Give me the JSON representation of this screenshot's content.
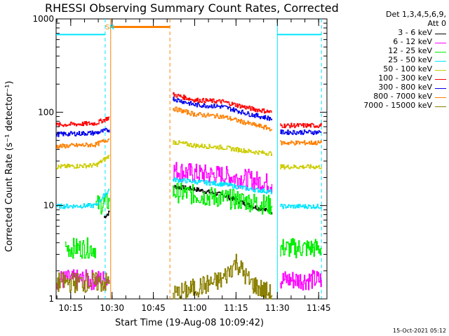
{
  "chart_data": {
    "type": "line",
    "title": "RHESSI Observing Summary Count Rates, Corrected",
    "xlabel": "Start Time (19-Aug-08 10:09:42)",
    "ylabel": "Corrected Count Rate (s⁻¹ detector⁻¹)",
    "y_scale": "log",
    "ylim": [
      1,
      1000
    ],
    "xlim_minutes": [
      "10:09:42",
      "11:48:00"
    ],
    "x_tick_labels": [
      "10:15",
      "10:30",
      "10:45",
      "11:00",
      "11:15",
      "11:30",
      "11:45"
    ],
    "y_tick_labels": [
      "1",
      "10",
      "100",
      "1000"
    ],
    "legend_header": [
      "Det 1,3,4,5,6,9,",
      "Att 0"
    ],
    "flags": [
      {
        "label": "S",
        "time": "10:28:30",
        "color": "#ff8c00"
      },
      {
        "label": "N",
        "time": "10:30:00",
        "color": "#00e5ff"
      }
    ],
    "series": [
      {
        "name": "3 - 6 keV",
        "color": "#000000",
        "segments": [
          {
            "t": [
              "10:27",
              "10:29"
            ],
            "v": [
              7.5,
              8.5
            ]
          },
          {
            "t": [
              "10:52",
              "11:00",
              "11:10",
              "11:20",
              "11:28"
            ],
            "v": [
              16,
              15,
              13,
              10,
              8.5
            ]
          }
        ]
      },
      {
        "name": "6 - 12 keV",
        "color": "#ff00ff",
        "segments": [
          {
            "t": [
              "10:09:42",
              "10:29"
            ],
            "v": [
              1.6,
              1.6
            ]
          },
          {
            "t": [
              "10:52",
              "11:00",
              "11:10",
              "11:20",
              "11:28"
            ],
            "v": [
              24,
              22,
              21,
              19,
              17
            ]
          },
          {
            "t": [
              "11:31",
              "11:46"
            ],
            "v": [
              1.6,
              1.6
            ]
          }
        ]
      },
      {
        "name": "12 - 25 keV",
        "color": "#00ee00",
        "segments": [
          {
            "t": [
              "10:13",
              "10:24"
            ],
            "v": [
              3.5,
              3.5
            ]
          },
          {
            "t": [
              "10:24",
              "10:29"
            ],
            "v": [
              10,
              11
            ]
          },
          {
            "t": [
              "10:52",
              "11:00",
              "11:10",
              "11:20",
              "11:28"
            ],
            "v": [
              14,
              13,
              12,
              11,
              10
            ]
          },
          {
            "t": [
              "11:31",
              "11:46"
            ],
            "v": [
              3.5,
              3.5
            ]
          }
        ]
      },
      {
        "name": "25 - 50 keV",
        "color": "#00e5ff",
        "segments": [
          {
            "t": [
              "10:09:42",
              "10:24",
              "10:29"
            ],
            "v": [
              9.8,
              10,
              15
            ]
          },
          {
            "t": [
              "10:52",
              "11:00",
              "11:10",
              "11:20",
              "11:28"
            ],
            "v": [
              19,
              18,
              17,
              15,
              14
            ]
          },
          {
            "t": [
              "11:31",
              "11:46"
            ],
            "v": [
              9.8,
              9.8
            ]
          }
        ]
      },
      {
        "name": "50 - 100 keV",
        "color": "#cccc00",
        "segments": [
          {
            "t": [
              "10:09:42",
              "10:24",
              "10:29"
            ],
            "v": [
              26,
              27,
              34
            ]
          },
          {
            "t": [
              "10:52",
              "11:00",
              "11:10",
              "11:20",
              "11:28"
            ],
            "v": [
              48,
              44,
              42,
              38,
              36
            ]
          },
          {
            "t": [
              "11:31",
              "11:46"
            ],
            "v": [
              26,
              26
            ]
          }
        ]
      },
      {
        "name": "100 - 300 keV",
        "color": "#ff0000",
        "segments": [
          {
            "t": [
              "10:09:42",
              "10:24",
              "10:29"
            ],
            "v": [
              73,
              76,
              88
            ]
          },
          {
            "t": [
              "10:52",
              "11:00",
              "11:10",
              "11:20",
              "11:28"
            ],
            "v": [
              155,
              135,
              130,
              110,
              100
            ]
          },
          {
            "t": [
              "11:31",
              "11:46"
            ],
            "v": [
              72,
              72
            ]
          }
        ]
      },
      {
        "name": "300 - 800 keV",
        "color": "#0000ee",
        "segments": [
          {
            "t": [
              "10:09:42",
              "10:24",
              "10:29"
            ],
            "v": [
              58,
              60,
              65
            ]
          },
          {
            "t": [
              "10:52",
              "11:00",
              "11:10",
              "11:20",
              "11:28"
            ],
            "v": [
              140,
              120,
              115,
              95,
              85
            ]
          },
          {
            "t": [
              "11:31",
              "11:46"
            ],
            "v": [
              61,
              61
            ]
          }
        ]
      },
      {
        "name": "800 - 7000 keV",
        "color": "#ff8000",
        "segments": [
          {
            "t": [
              "10:09:42",
              "10:24",
              "10:29"
            ],
            "v": [
              43,
              45,
              52
            ]
          },
          {
            "t": [
              "10:52",
              "11:00",
              "11:10",
              "11:20",
              "11:28"
            ],
            "v": [
              110,
              95,
              90,
              75,
              66
            ]
          },
          {
            "t": [
              "11:31",
              "11:46"
            ],
            "v": [
              47,
              47
            ]
          }
        ]
      },
      {
        "name": "7000 - 15000 keV",
        "color": "#8b8000",
        "segments": [
          {
            "t": [
              "10:09:42",
              "10:29"
            ],
            "v": [
              1.5,
              1.5
            ]
          },
          {
            "t": [
              "10:52",
              "11:10",
              "11:15",
              "11:20",
              "11:28"
            ],
            "v": [
              1.1,
              1.6,
              2.5,
              1.5,
              1.1
            ]
          }
        ]
      }
    ],
    "attenuator_level": {
      "t": [
        "10:29:30",
        "10:51:00"
      ],
      "v": 820,
      "color": "#ff8000"
    },
    "cyan_level_bars": [
      {
        "t": [
          "10:09:42",
          "10:27:30"
        ],
        "v": 680,
        "color": "#00e5ff"
      },
      {
        "t": [
          "11:30:00",
          "11:46:00"
        ],
        "v": 680,
        "color": "#00e5ff"
      }
    ],
    "vertical_markers": [
      {
        "time": "10:27:30",
        "style": "dashed",
        "color": "#00e5ff"
      },
      {
        "time": "10:29:30",
        "style": "solid",
        "color": "#ff8000"
      },
      {
        "time": "10:51:00",
        "style": "dashed",
        "color": "#ff8000"
      },
      {
        "time": "11:30:00",
        "style": "solid",
        "color": "#00e5ff"
      },
      {
        "time": "11:46:00",
        "style": "dashed",
        "color": "#00e5ff"
      }
    ]
  },
  "timestamp": "15-Oct-2021 05:12"
}
